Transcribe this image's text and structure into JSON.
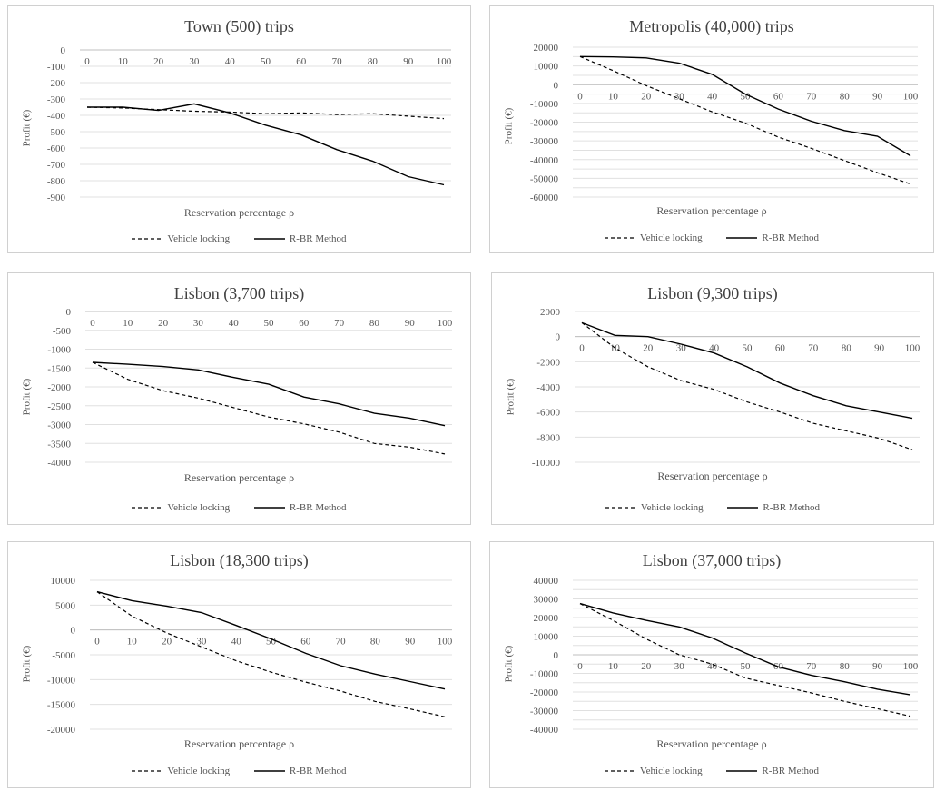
{
  "legend": {
    "locking": "Vehicle locking",
    "rbr": "R-BR Method"
  },
  "chart_data": [
    {
      "type": "line",
      "title": "Town (500)  trips",
      "xlabel": "Reservation percentage ρ",
      "ylabel": "Profit (€)",
      "categories": [
        "0",
        "10",
        "20",
        "30",
        "40",
        "50",
        "60",
        "70",
        "80",
        "90",
        "100"
      ],
      "yticks": [
        0,
        -100,
        -200,
        -300,
        -400,
        -500,
        -600,
        -700,
        -800,
        -900
      ],
      "ylim": [
        -900,
        0
      ],
      "legend_position": "bottom",
      "series": [
        {
          "name": "Vehicle locking",
          "style": "dashed",
          "values": [
            -350,
            -355,
            -365,
            -375,
            -380,
            -390,
            -385,
            -395,
            -390,
            -405,
            -420
          ]
        },
        {
          "name": "R-BR Method",
          "style": "solid",
          "values": [
            -350,
            -350,
            -370,
            -330,
            -385,
            -460,
            -520,
            -610,
            -680,
            -775,
            -825
          ]
        }
      ]
    },
    {
      "type": "line",
      "title": "Metropolis (40,000) trips",
      "xlabel": "Reservation percentage ρ",
      "ylabel": "Profit (€)",
      "categories": [
        "0",
        "10",
        "20",
        "30",
        "40",
        "50",
        "60",
        "70",
        "80",
        "90",
        "100"
      ],
      "yticks": [
        20000,
        10000,
        0,
        -10000,
        -20000,
        -30000,
        -40000,
        -50000,
        -60000
      ],
      "yticklabels": [
        "20000",
        "10000",
        "0",
        "-10000",
        "-20000",
        "-30000",
        "-40000",
        "-50000",
        "-60000"
      ],
      "extra_ticks": [
        15000,
        5000,
        -5000,
        -15000,
        -25000,
        -35000,
        -45000,
        -55000
      ],
      "ylim": [
        -60000,
        20000
      ],
      "legend_position": "bottom",
      "series": [
        {
          "name": "Vehicle locking",
          "style": "dashed",
          "values": [
            15000,
            7500,
            -500,
            -7500,
            -14500,
            -20500,
            -28000,
            -34000,
            -40500,
            -47000,
            -53000
          ]
        },
        {
          "name": "R-BR Method",
          "style": "solid",
          "values": [
            15000,
            14800,
            14300,
            11500,
            5500,
            -5000,
            -13000,
            -19500,
            -24500,
            -27500,
            -38000
          ]
        }
      ]
    },
    {
      "type": "line",
      "title": "Lisbon (3,700 trips)",
      "xlabel": "Reservation percentage ρ",
      "ylabel": "Profit (€)",
      "categories": [
        "0",
        "10",
        "20",
        "30",
        "40",
        "50",
        "60",
        "70",
        "80",
        "90",
        "100"
      ],
      "yticks": [
        0,
        -500,
        -1000,
        -1500,
        -2000,
        -2500,
        -3000,
        -3500,
        -4000
      ],
      "ylim": [
        -4000,
        0
      ],
      "legend_position": "bottom",
      "series": [
        {
          "name": "Vehicle locking",
          "style": "dashed",
          "values": [
            -1350,
            -1800,
            -2100,
            -2300,
            -2550,
            -2800,
            -2980,
            -3200,
            -3500,
            -3600,
            -3780
          ]
        },
        {
          "name": "R-BR Method",
          "style": "solid",
          "values": [
            -1350,
            -1400,
            -1460,
            -1550,
            -1750,
            -1930,
            -2270,
            -2450,
            -2700,
            -2830,
            -3030
          ]
        }
      ]
    },
    {
      "type": "line",
      "title": "Lisbon (9,300 trips)",
      "xlabel": "Reservation percentage ρ",
      "ylabel": "Profit (€)",
      "categories": [
        "0",
        "10",
        "20",
        "30",
        "40",
        "50",
        "60",
        "70",
        "80",
        "90",
        "100"
      ],
      "yticks": [
        2000,
        0,
        -2000,
        -4000,
        -6000,
        -8000,
        -10000
      ],
      "ylim": [
        -10000,
        2000
      ],
      "legend_position": "bottom",
      "series": [
        {
          "name": "Vehicle locking",
          "style": "dashed",
          "values": [
            1100,
            -900,
            -2400,
            -3500,
            -4200,
            -5200,
            -6000,
            -6900,
            -7500,
            -8100,
            -9000
          ]
        },
        {
          "name": "R-BR Method",
          "style": "solid",
          "values": [
            1100,
            100,
            0,
            -600,
            -1300,
            -2400,
            -3700,
            -4700,
            -5500,
            -6000,
            -6500
          ]
        }
      ]
    },
    {
      "type": "line",
      "title": "Lisbon (18,300 trips)",
      "xlabel": "Reservation percentage ρ",
      "ylabel": "Profit (€)",
      "categories": [
        "0",
        "10",
        "20",
        "30",
        "40",
        "50",
        "60",
        "70",
        "80",
        "90",
        "100"
      ],
      "yticks": [
        10000,
        5000,
        0,
        -5000,
        -10000,
        -15000,
        -20000
      ],
      "ylim": [
        -20000,
        10000
      ],
      "legend_position": "bottom",
      "series": [
        {
          "name": "Vehicle locking",
          "style": "dashed",
          "values": [
            7700,
            2800,
            -600,
            -3400,
            -6200,
            -8500,
            -10500,
            -12300,
            -14400,
            -15900,
            -17500
          ]
        },
        {
          "name": "R-BR Method",
          "style": "solid",
          "values": [
            7700,
            5900,
            4800,
            3500,
            900,
            -1800,
            -4700,
            -7200,
            -8900,
            -10400,
            -11900
          ]
        }
      ]
    },
    {
      "type": "line",
      "title": "Lisbon (37,000 trips)",
      "xlabel": "Reservation percentage ρ",
      "ylabel": "Profit (€)",
      "categories": [
        "0",
        "10",
        "20",
        "30",
        "40",
        "50",
        "60",
        "70",
        "80",
        "90",
        "100"
      ],
      "yticks": [
        40000,
        30000,
        20000,
        10000,
        0,
        -10000,
        -20000,
        -30000,
        -40000
      ],
      "extra_ticks": [
        35000,
        25000,
        15000,
        5000,
        -5000,
        -15000,
        -25000,
        -35000
      ],
      "ylim": [
        -40000,
        40000
      ],
      "legend_position": "bottom",
      "series": [
        {
          "name": "Vehicle locking",
          "style": "dashed",
          "values": [
            27500,
            18500,
            8500,
            0,
            -5000,
            -12500,
            -16500,
            -20500,
            -25000,
            -29000,
            -33000
          ]
        },
        {
          "name": "R-BR Method",
          "style": "solid",
          "values": [
            27500,
            22500,
            18500,
            15000,
            9000,
            1000,
            -6500,
            -11000,
            -14500,
            -18500,
            -21500
          ]
        }
      ]
    }
  ]
}
